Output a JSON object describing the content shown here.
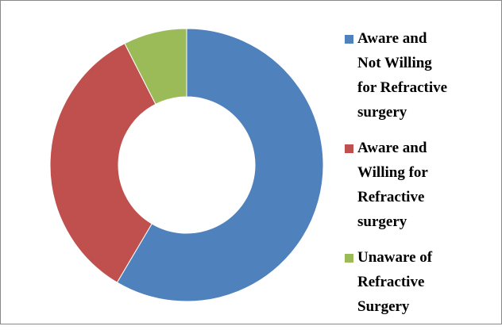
{
  "chart_data": {
    "type": "donut",
    "categories": [
      "Aware and Not Willing for Refractive surgery",
      "Aware and Willing for Refractive surgery",
      "Unaware of Refractive Surgery"
    ],
    "values": [
      58.5,
      34,
      7.5
    ],
    "colors": [
      "#4f81bd",
      "#c0504d",
      "#9bbb59"
    ],
    "legend": "right"
  }
}
